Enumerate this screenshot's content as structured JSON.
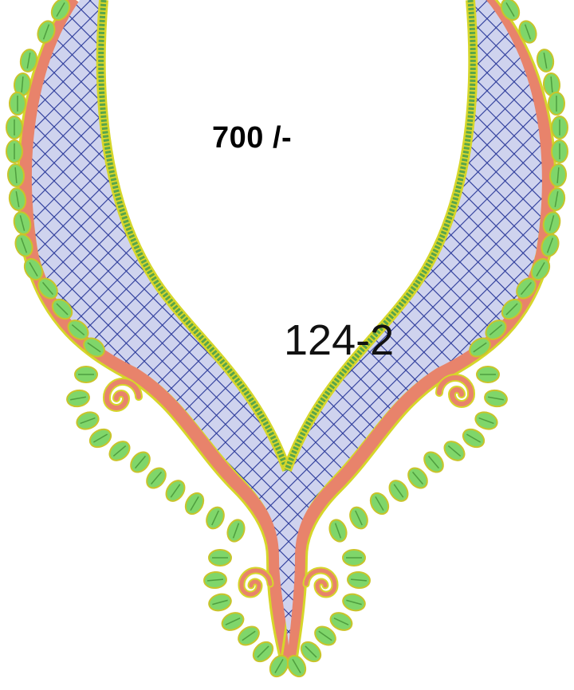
{
  "price_text": "700 /-",
  "design_code": "124-2",
  "colors": {
    "mesh_fill": "#cfd3ee",
    "mesh_line": "#2b3a9a",
    "salmon_border": "#e8836b",
    "green_band": "#5aa64a",
    "yellow_edge": "#d6d62a",
    "leaf_green": "#7fd66a",
    "leaf_outline": "#c9c42a"
  },
  "icons": {
    "motif": "embroidery-necklace-motif",
    "leaf": "leaf-petal-icon",
    "swirl": "spiral-swirl-icon"
  }
}
